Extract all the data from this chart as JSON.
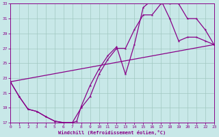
{
  "xlabel": "Windchill (Refroidissement éolien,°C)",
  "xlim": [
    0,
    23
  ],
  "ylim": [
    17,
    33
  ],
  "xticks": [
    0,
    1,
    2,
    3,
    4,
    5,
    6,
    7,
    8,
    9,
    10,
    11,
    12,
    13,
    14,
    15,
    16,
    17,
    18,
    19,
    20,
    21,
    22,
    23
  ],
  "yticks": [
    17,
    19,
    21,
    23,
    25,
    27,
    29,
    31,
    33
  ],
  "bg": "#c8e8e8",
  "grid_color": "#a0c8c0",
  "lc": "#880088",
  "curve1_x": [
    0,
    1,
    2,
    3,
    4,
    5,
    6,
    7,
    8,
    9,
    10,
    11,
    12,
    13,
    14,
    15,
    16,
    17,
    18,
    19,
    20,
    21,
    22,
    23
  ],
  "curve1_y": [
    22.5,
    20.5,
    18.8,
    18.5,
    17.8,
    17.2,
    17.0,
    17.0,
    19.0,
    20.5,
    23.5,
    25.5,
    27.0,
    27.0,
    29.5,
    31.5,
    31.5,
    33.0,
    33.0,
    33.0,
    31.0,
    31.0,
    29.5,
    27.5
  ],
  "curve2_x": [
    0,
    1,
    2,
    3,
    4,
    5,
    6,
    7,
    7.5,
    8,
    9,
    10,
    11,
    12,
    13,
    14,
    15,
    16,
    17,
    18,
    19,
    20,
    21,
    22,
    23
  ],
  "curve2_y": [
    22.5,
    20.5,
    18.8,
    18.5,
    17.8,
    17.2,
    17.0,
    17.0,
    17.2,
    19.2,
    22.0,
    24.2,
    26.0,
    27.2,
    23.5,
    27.5,
    32.5,
    33.5,
    33.5,
    31.0,
    28.0,
    28.5,
    28.5,
    28.0,
    27.5
  ],
  "curve3_x": [
    0,
    23
  ],
  "curve3_y": [
    22.5,
    27.5
  ]
}
